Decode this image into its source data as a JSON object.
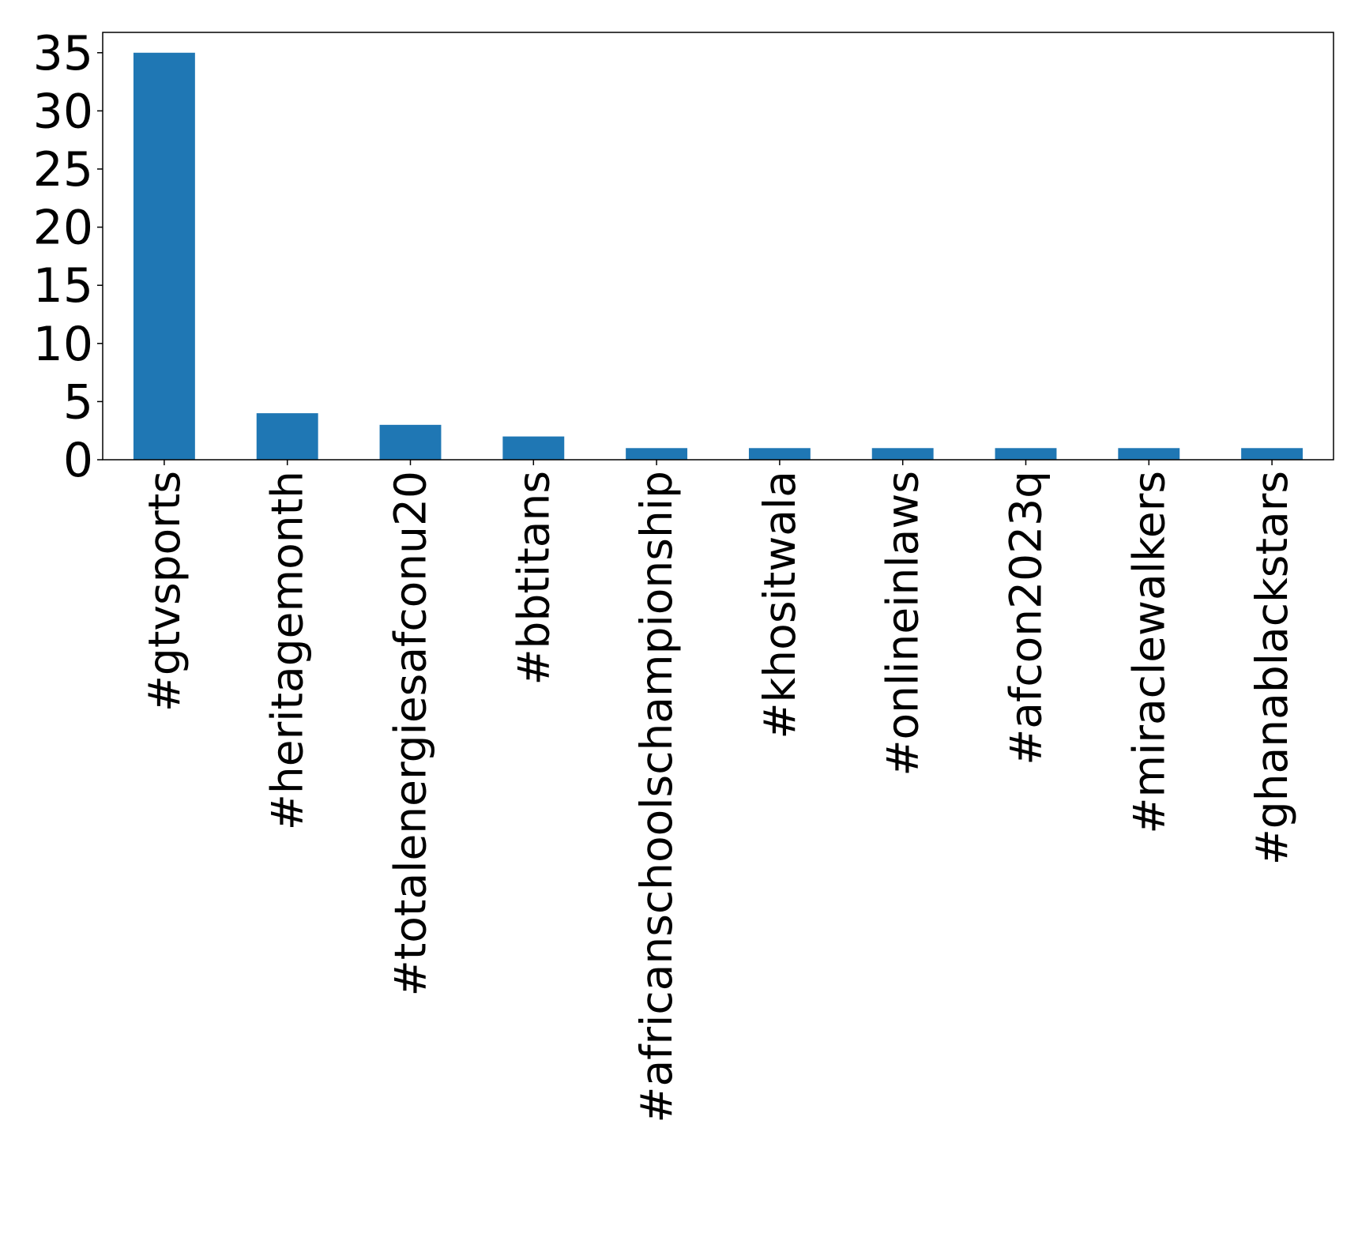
{
  "chart_data": {
    "type": "bar",
    "title": "",
    "xlabel": "",
    "ylabel": "",
    "categories": [
      "#gtvsports",
      "#heritagemonth",
      "#totalenergiesafconu20",
      "#bbtitans",
      "#africanschoolschampionship",
      "#khositwala",
      "#onlineinlaws",
      "#afcon2023q",
      "#miraclewalkers",
      "#ghanablackstars"
    ],
    "values": [
      35,
      4,
      3,
      2,
      1,
      1,
      1,
      1,
      1,
      1
    ],
    "ylim": [
      0,
      36.75
    ],
    "yticks": [
      0,
      5,
      10,
      15,
      20,
      25,
      30,
      35
    ],
    "x_tick_rotation": "vertical",
    "grid": false,
    "legend": "none",
    "colors": {
      "bar": "#1f77b4",
      "axes": "#000000",
      "background": "#ffffff"
    }
  }
}
